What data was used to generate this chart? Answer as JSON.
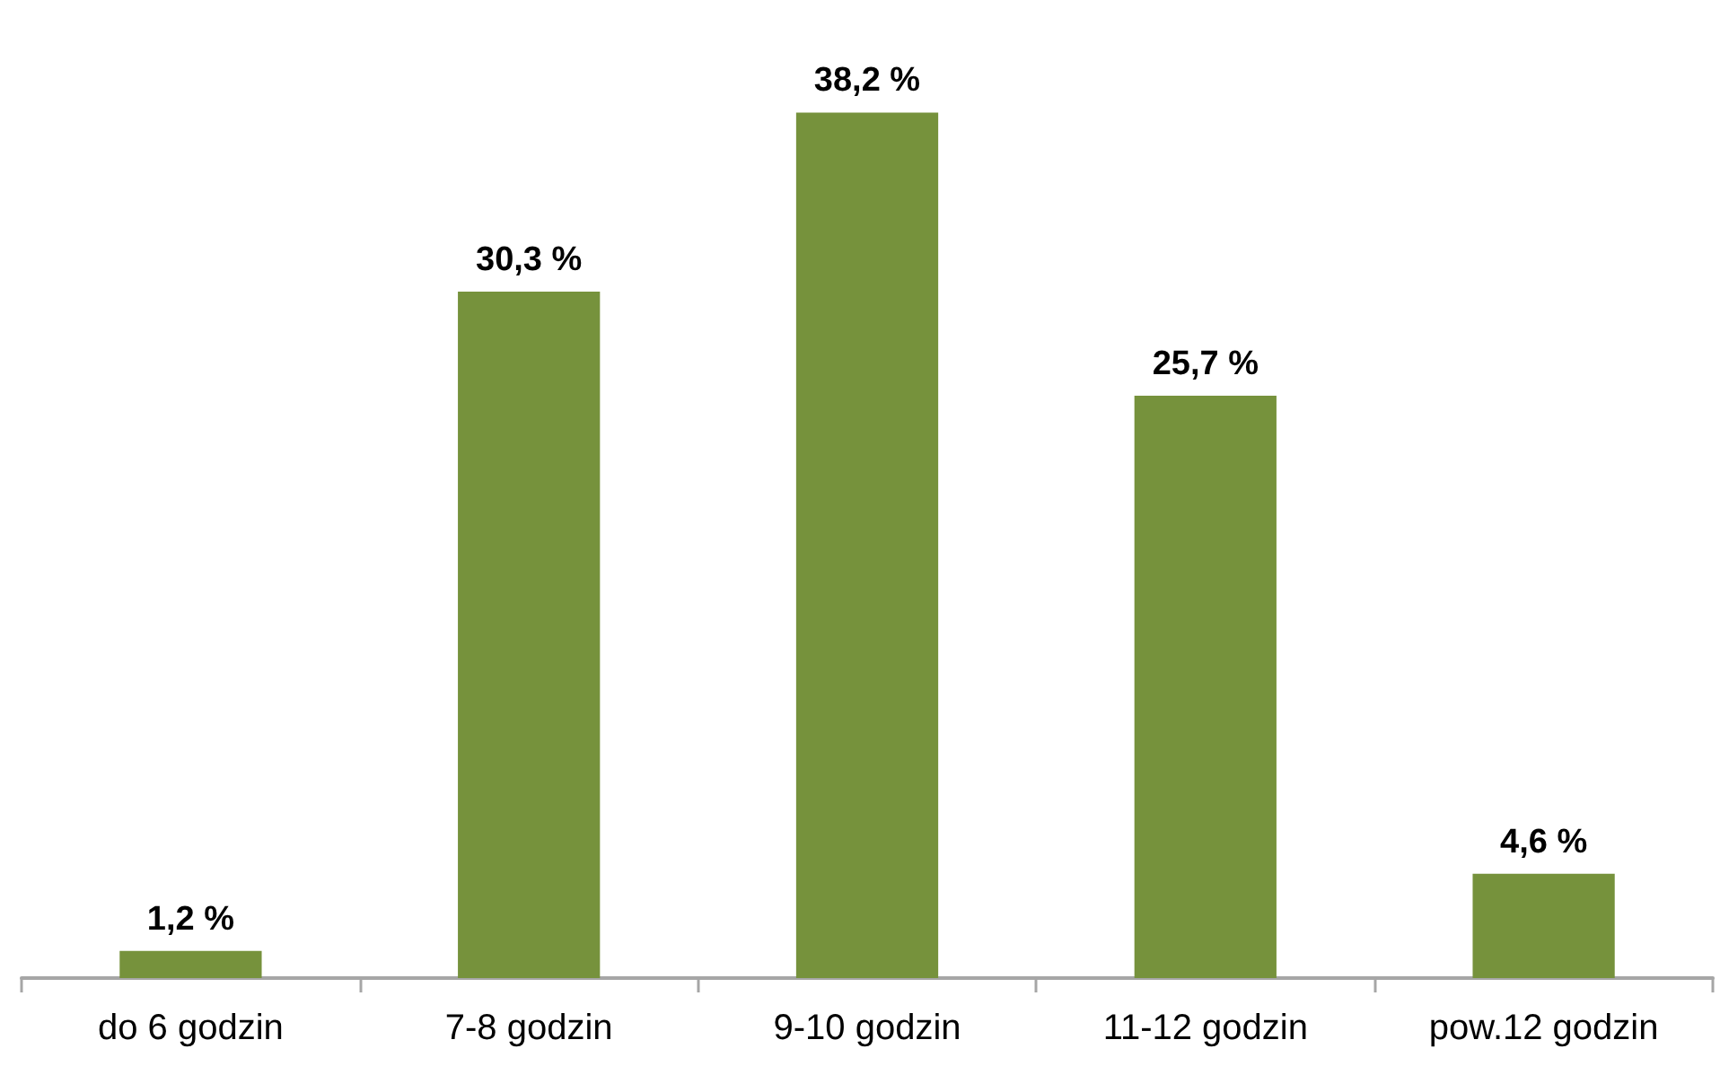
{
  "chart_data": {
    "type": "bar",
    "categories": [
      "do 6 godzin",
      "7-8 godzin",
      "9-10 godzin",
      "11-12 godzin",
      "pow.12 godzin"
    ],
    "values": [
      1.2,
      30.3,
      38.2,
      25.7,
      4.6
    ],
    "color": "#76923c",
    "value_labels": [
      "1,2 %",
      "30,3 %",
      "38,2 %",
      "25,7 %",
      "4,6 %"
    ]
  }
}
